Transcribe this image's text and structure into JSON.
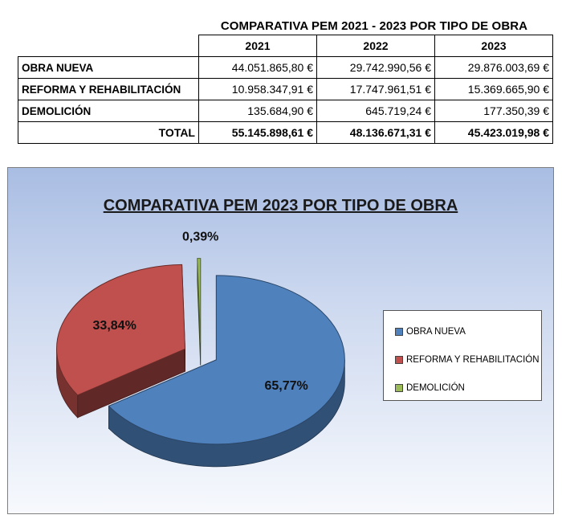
{
  "table": {
    "title": "COMPARATIVA PEM 2021 - 2023 POR TIPO DE OBRA",
    "years": [
      "2021",
      "2022",
      "2023"
    ],
    "rows": [
      {
        "label": "OBRA NUEVA",
        "values": [
          "44.051.865,80 €",
          "29.742.990,56 €",
          "29.876.003,69 €"
        ]
      },
      {
        "label": "REFORMA Y REHABILITACIÓN",
        "values": [
          "10.958.347,91 €",
          "17.747.961,51 €",
          "15.369.665,90 €"
        ]
      },
      {
        "label": "DEMOLICIÓN",
        "values": [
          "135.684,90 €",
          "645.719,24 €",
          "177.350,39 €"
        ]
      }
    ],
    "total": {
      "label": "TOTAL",
      "values": [
        "55.145.898,61 €",
        "48.136.671,31 €",
        "45.423.019,98 €"
      ]
    }
  },
  "chart_data": {
    "type": "pie",
    "title": "COMPARATIVA PEM 2023 POR TIPO DE OBRA",
    "categories": [
      "OBRA NUEVA",
      "REFORMA Y REHABILITACIÓN",
      "DEMOLICIÓN"
    ],
    "values": [
      65.77,
      33.84,
      0.39
    ],
    "labels": [
      "65,77%",
      "33,84%",
      "0,39%"
    ],
    "colors": [
      "#4f81bd",
      "#c0504d",
      "#9bbb59"
    ],
    "exploded": true,
    "style": "3d",
    "legend_position": "right"
  }
}
